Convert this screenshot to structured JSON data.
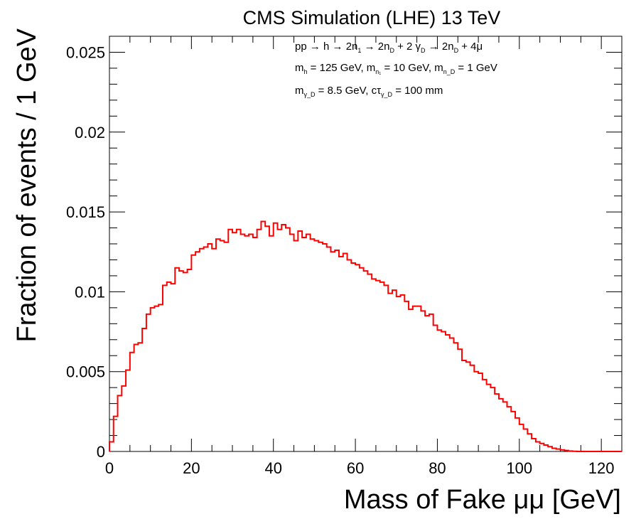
{
  "chart_data": {
    "type": "line",
    "title": "CMS Simulation (LHE) 13 TeV",
    "xlabel": "Mass of Fake μμ [GeV]",
    "ylabel": "Fraction of events / 1 GeV",
    "xlim": [
      0,
      125
    ],
    "ylim": [
      0,
      0.026
    ],
    "x_ticks": [
      "0",
      "20",
      "40",
      "60",
      "80",
      "100",
      "120"
    ],
    "y_ticks": [
      "0",
      "0.005",
      "0.01",
      "0.015",
      "0.02",
      "0.025"
    ],
    "grid": false,
    "histogram": true,
    "bin_width": 1,
    "series": [
      {
        "color": "#ff0000",
        "values": [
          0.0006,
          0.0022,
          0.0035,
          0.0041,
          0.0051,
          0.0062,
          0.0067,
          0.0068,
          0.0077,
          0.0086,
          0.009,
          0.0091,
          0.0092,
          0.0104,
          0.0106,
          0.0105,
          0.0115,
          0.0113,
          0.0112,
          0.0114,
          0.0123,
          0.0125,
          0.0127,
          0.0128,
          0.013,
          0.0127,
          0.0133,
          0.0132,
          0.0131,
          0.0139,
          0.0137,
          0.0139,
          0.0136,
          0.0135,
          0.0136,
          0.0134,
          0.0139,
          0.0144,
          0.0141,
          0.0135,
          0.0143,
          0.0139,
          0.0142,
          0.014,
          0.0136,
          0.0132,
          0.0138,
          0.0134,
          0.0136,
          0.0133,
          0.0132,
          0.0131,
          0.013,
          0.0128,
          0.0125,
          0.0126,
          0.0122,
          0.0124,
          0.012,
          0.0118,
          0.0117,
          0.0115,
          0.0113,
          0.0111,
          0.0108,
          0.0107,
          0.0106,
          0.0104,
          0.0099,
          0.0101,
          0.0097,
          0.0098,
          0.0094,
          0.0089,
          0.0091,
          0.0091,
          0.0088,
          0.0085,
          0.0086,
          0.0079,
          0.0076,
          0.0075,
          0.0073,
          0.0071,
          0.0068,
          0.0064,
          0.0057,
          0.0056,
          0.0054,
          0.005,
          0.0049,
          0.0045,
          0.0042,
          0.004,
          0.0036,
          0.0033,
          0.0031,
          0.0028,
          0.0025,
          0.0021,
          0.0017,
          0.0014,
          0.0011,
          0.0008,
          0.0006,
          0.0005,
          0.0004,
          0.0003,
          0.0002,
          0.00015,
          0.0001,
          6e-05,
          3e-05,
          1e-05,
          0,
          0,
          0,
          0,
          0,
          0,
          0,
          0,
          0,
          0,
          0
        ]
      }
    ],
    "annotations": {
      "line1": {
        "a": "pp → h → 2n",
        "a_sub": "1",
        "b": " → 2n",
        "b_sub": "D",
        "c": " + 2 γ",
        "c_sub": "D",
        "d": " → 2n",
        "d_sub": "D",
        "e": " + 4μ"
      },
      "line2": {
        "a": "m",
        "a_sub": "h",
        "b": " = 125 GeV, m",
        "b_sub": "n₁",
        "c": " = 10 GeV, m",
        "c_sub": "n_D",
        "d": " = 1 GeV"
      },
      "line3": {
        "a": "m",
        "a_sub": "γ_D",
        "b": " = 8.5 GeV, cτ",
        "b_sub": "γ_D",
        "c": " = 100 mm"
      }
    }
  }
}
